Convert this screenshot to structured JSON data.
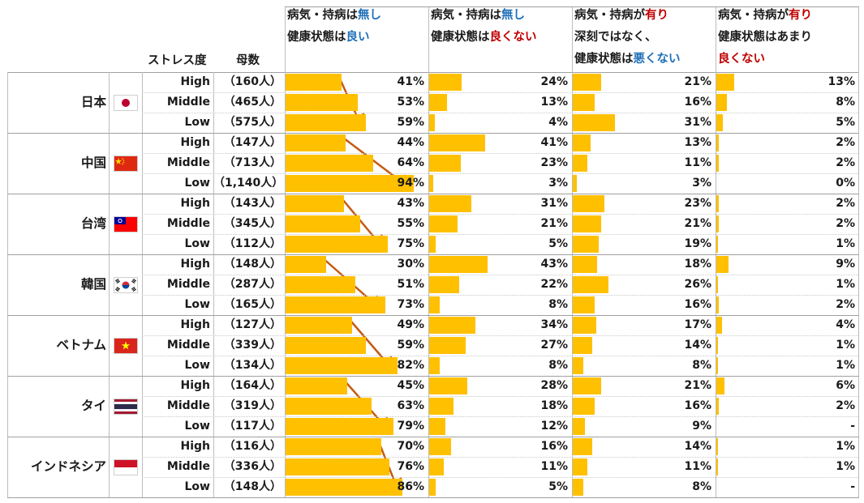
{
  "header": {
    "stress_label": "ストレス度",
    "sample_label": "母数",
    "columns": [
      {
        "prefix": "病気・持病は",
        "emph": "無し",
        "emph_color": "#1f6fb8",
        "line2_prefix": "健康状態は",
        "line2_emph": "良い",
        "line2_color": "#1f6fb8",
        "line3": "",
        "line3_emph": "",
        "line3_color": ""
      },
      {
        "prefix": "病気・持病は",
        "emph": "無し",
        "emph_color": "#1f6fb8",
        "line2_prefix": "健康状態は",
        "line2_emph": "良くない",
        "line2_color": "#c00000",
        "line3": "",
        "line3_emph": "",
        "line3_color": ""
      },
      {
        "prefix": "病気・持病が",
        "emph": "有り",
        "emph_color": "#c00000",
        "line2_prefix": "深刻ではなく、",
        "line2_emph": "",
        "line2_color": "",
        "line3": "健康状態は",
        "line3_emph": "悪くない",
        "line3_color": "#1f6fb8"
      },
      {
        "prefix": "病気・持病が",
        "emph": "有り",
        "emph_color": "#c00000",
        "line2_prefix": "健康状態はあまり",
        "line2_emph": "",
        "line2_color": "",
        "line3": "",
        "line3_emph": "良くない",
        "line3_color": "#c00000"
      }
    ]
  },
  "colors": {
    "bar": "#ffc000",
    "arrow": "#c55a11"
  },
  "chart_data": {
    "type": "bar",
    "stress_levels": [
      "High",
      "Middle",
      "Low"
    ],
    "countries": [
      {
        "name": "日本",
        "flag": "japan-flag",
        "samples": [
          "（160人）",
          "（465人）",
          "（575人）"
        ],
        "values": [
          [
            41,
            24,
            21,
            13
          ],
          [
            53,
            13,
            16,
            8
          ],
          [
            59,
            4,
            31,
            5
          ]
        ],
        "labels": [
          [
            "41%",
            "24%",
            "21%",
            "13%"
          ],
          [
            "53%",
            "13%",
            "16%",
            "8%"
          ],
          [
            "59%",
            "4%",
            "31%",
            "5%"
          ]
        ]
      },
      {
        "name": "中国",
        "flag": "china-flag",
        "samples": [
          "（147人）",
          "（713人）",
          "（1,140人）"
        ],
        "values": [
          [
            44,
            41,
            13,
            2
          ],
          [
            64,
            23,
            11,
            2
          ],
          [
            94,
            3,
            3,
            0
          ]
        ],
        "labels": [
          [
            "44%",
            "41%",
            "13%",
            "2%"
          ],
          [
            "64%",
            "23%",
            "11%",
            "2%"
          ],
          [
            "94%",
            "3%",
            "3%",
            "0%"
          ]
        ]
      },
      {
        "name": "台湾",
        "flag": "taiwan-flag",
        "samples": [
          "（143人）",
          "（345人）",
          "（112人）"
        ],
        "values": [
          [
            43,
            31,
            23,
            2
          ],
          [
            55,
            21,
            21,
            2
          ],
          [
            75,
            5,
            19,
            1
          ]
        ],
        "labels": [
          [
            "43%",
            "31%",
            "23%",
            "2%"
          ],
          [
            "55%",
            "21%",
            "21%",
            "2%"
          ],
          [
            "75%",
            "5%",
            "19%",
            "1%"
          ]
        ]
      },
      {
        "name": "韓国",
        "flag": "korea-flag",
        "samples": [
          "（148人）",
          "（287人）",
          "（165人）"
        ],
        "values": [
          [
            30,
            43,
            18,
            9
          ],
          [
            51,
            22,
            26,
            1
          ],
          [
            73,
            8,
            16,
            2
          ]
        ],
        "labels": [
          [
            "30%",
            "43%",
            "18%",
            "9%"
          ],
          [
            "51%",
            "22%",
            "26%",
            "1%"
          ],
          [
            "73%",
            "8%",
            "16%",
            "2%"
          ]
        ]
      },
      {
        "name": "ベトナム",
        "flag": "vietnam-flag",
        "samples": [
          "（127人）",
          "（339人）",
          "（134人）"
        ],
        "values": [
          [
            49,
            34,
            17,
            4
          ],
          [
            59,
            27,
            14,
            1
          ],
          [
            82,
            8,
            8,
            1
          ]
        ],
        "labels": [
          [
            "49%",
            "34%",
            "17%",
            "4%"
          ],
          [
            "59%",
            "27%",
            "14%",
            "1%"
          ],
          [
            "82%",
            "8%",
            "8%",
            "1%"
          ]
        ]
      },
      {
        "name": "タイ",
        "flag": "thailand-flag",
        "samples": [
          "（164人）",
          "（319人）",
          "（117人）"
        ],
        "values": [
          [
            45,
            28,
            21,
            6
          ],
          [
            63,
            18,
            16,
            2
          ],
          [
            79,
            12,
            9,
            0
          ]
        ],
        "labels": [
          [
            "45%",
            "28%",
            "21%",
            "6%"
          ],
          [
            "63%",
            "18%",
            "16%",
            "2%"
          ],
          [
            "79%",
            "12%",
            "9%",
            "-"
          ]
        ]
      },
      {
        "name": "インドネシア",
        "flag": "indonesia-flag",
        "samples": [
          "（116人）",
          "（336人）",
          "（148人）"
        ],
        "values": [
          [
            70,
            16,
            14,
            1
          ],
          [
            76,
            11,
            11,
            1
          ],
          [
            86,
            5,
            8,
            0
          ]
        ],
        "labels": [
          [
            "70%",
            "16%",
            "14%",
            "1%"
          ],
          [
            "76%",
            "11%",
            "11%",
            "1%"
          ],
          [
            "86%",
            "5%",
            "8%",
            "-"
          ]
        ]
      }
    ]
  }
}
